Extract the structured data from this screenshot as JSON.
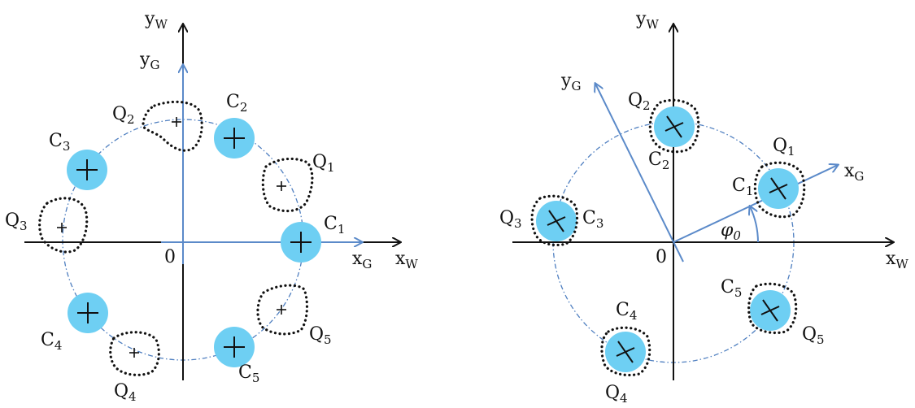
{
  "colors": {
    "disk": "#6ecff3",
    "g_axis": "#5b8ac9",
    "circle": "#4f7fc0",
    "ink": "#111111"
  },
  "left_panel": {
    "axes": {
      "x_w": "x",
      "x_w_sub": "W",
      "y_w": "y",
      "y_w_sub": "W",
      "x_g": "x",
      "x_g_sub": "G",
      "y_g": "y",
      "y_g_sub": "G",
      "origin": "0"
    },
    "c_labels": [
      {
        "main": "C",
        "sub": "1"
      },
      {
        "main": "C",
        "sub": "2"
      },
      {
        "main": "C",
        "sub": "3"
      },
      {
        "main": "C",
        "sub": "4"
      },
      {
        "main": "C",
        "sub": "5"
      }
    ],
    "q_labels": [
      {
        "main": "Q",
        "sub": "1"
      },
      {
        "main": "Q",
        "sub": "2"
      },
      {
        "main": "Q",
        "sub": "3"
      },
      {
        "main": "Q",
        "sub": "4"
      },
      {
        "main": "Q",
        "sub": "5"
      }
    ]
  },
  "right_panel": {
    "axes": {
      "x_w": "x",
      "x_w_sub": "W",
      "y_w": "y",
      "y_w_sub": "W",
      "x_g": "x",
      "x_g_sub": "G",
      "y_g": "y",
      "y_g_sub": "G",
      "origin": "0"
    },
    "angle": {
      "main": "φ",
      "sub": "0"
    },
    "c_labels": [
      {
        "main": "C",
        "sub": "1"
      },
      {
        "main": "C",
        "sub": "2"
      },
      {
        "main": "C",
        "sub": "3"
      },
      {
        "main": "C",
        "sub": "4"
      },
      {
        "main": "C",
        "sub": "5"
      }
    ],
    "q_labels": [
      {
        "main": "Q",
        "sub": "1"
      },
      {
        "main": "Q",
        "sub": "2"
      },
      {
        "main": "Q",
        "sub": "3"
      },
      {
        "main": "Q",
        "sub": "4"
      },
      {
        "main": "Q",
        "sub": "5"
      }
    ]
  }
}
